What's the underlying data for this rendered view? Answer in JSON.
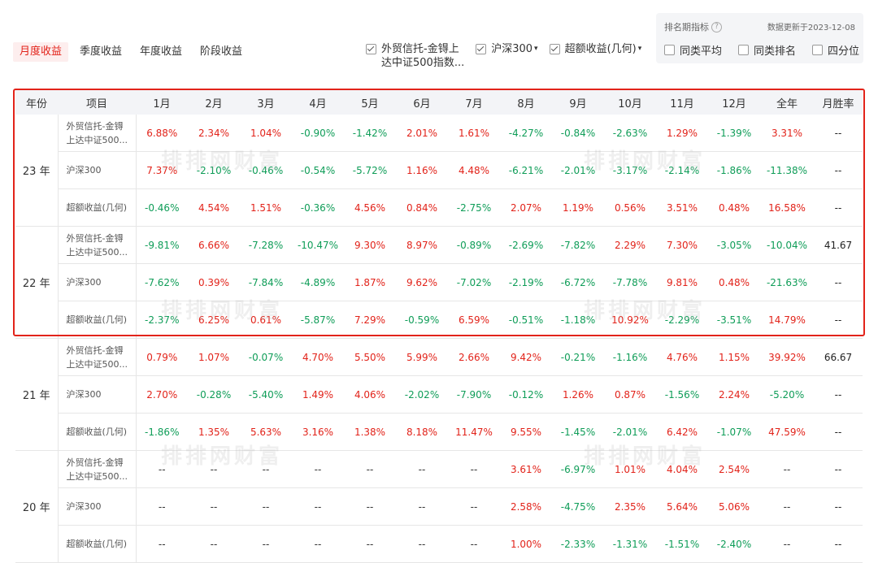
{
  "tabs": [
    "月度收益",
    "季度收益",
    "年度收益",
    "阶段收益"
  ],
  "series_options": [
    {
      "label_line1": "外贸信托-金锝上",
      "label_line2": "达中证500指数...",
      "checked": true,
      "caret": ""
    },
    {
      "label_line1": "沪深300",
      "label_line2": "",
      "checked": true,
      "caret": "▾"
    },
    {
      "label_line1": "超额收益(几何)",
      "label_line2": "",
      "checked": true,
      "caret": "▾"
    }
  ],
  "rank_panel": {
    "title": "排名期指标",
    "help_icon": "?",
    "update_text": "数据更新于2023-12-08",
    "options": [
      "同类平均",
      "同类排名",
      "四分位"
    ]
  },
  "watermark": "排排网财富",
  "table": {
    "headers": [
      "年份",
      "项目",
      "1月",
      "2月",
      "3月",
      "4月",
      "5月",
      "6月",
      "7月",
      "8月",
      "9月",
      "10月",
      "11月",
      "12月",
      "全年",
      "月胜率"
    ],
    "groups": [
      {
        "year": "23 年",
        "rows": [
          {
            "item": "外贸信托-金锝上达中证500...",
            "item_l1": "外贸信托-金锝",
            "item_l2": "上达中证500...",
            "values": [
              "6.88%",
              "2.34%",
              "1.04%",
              "-0.90%",
              "-1.42%",
              "2.01%",
              "1.61%",
              "-4.27%",
              "-0.84%",
              "-2.63%",
              "1.29%",
              "-1.39%",
              "3.31%"
            ],
            "win": "--"
          },
          {
            "item": "沪深300",
            "item_l1": "沪深300",
            "item_l2": "",
            "values": [
              "7.37%",
              "-2.10%",
              "-0.46%",
              "-0.54%",
              "-5.72%",
              "1.16%",
              "4.48%",
              "-6.21%",
              "-2.01%",
              "-3.17%",
              "-2.14%",
              "-1.86%",
              "-11.38%"
            ],
            "win": "--"
          },
          {
            "item": "超额收益(几何)",
            "item_l1": "超额收益(几何)",
            "item_l2": "",
            "values": [
              "-0.46%",
              "4.54%",
              "1.51%",
              "-0.36%",
              "4.56%",
              "0.84%",
              "-2.75%",
              "2.07%",
              "1.19%",
              "0.56%",
              "3.51%",
              "0.48%",
              "16.58%"
            ],
            "win": "--"
          }
        ]
      },
      {
        "year": "22 年",
        "rows": [
          {
            "item": "外贸信托-金锝上达中证500...",
            "item_l1": "外贸信托-金锝",
            "item_l2": "上达中证500...",
            "values": [
              "-9.81%",
              "6.66%",
              "-7.28%",
              "-10.47%",
              "9.30%",
              "8.97%",
              "-0.89%",
              "-2.69%",
              "-7.82%",
              "2.29%",
              "7.30%",
              "-3.05%",
              "-10.04%"
            ],
            "win": "41.67"
          },
          {
            "item": "沪深300",
            "item_l1": "沪深300",
            "item_l2": "",
            "values": [
              "-7.62%",
              "0.39%",
              "-7.84%",
              "-4.89%",
              "1.87%",
              "9.62%",
              "-7.02%",
              "-2.19%",
              "-6.72%",
              "-7.78%",
              "9.81%",
              "0.48%",
              "-21.63%"
            ],
            "win": "--"
          },
          {
            "item": "超额收益(几何)",
            "item_l1": "超额收益(几何)",
            "item_l2": "",
            "values": [
              "-2.37%",
              "6.25%",
              "0.61%",
              "-5.87%",
              "7.29%",
              "-0.59%",
              "6.59%",
              "-0.51%",
              "-1.18%",
              "10.92%",
              "-2.29%",
              "-3.51%",
              "14.79%"
            ],
            "win": "--"
          }
        ]
      },
      {
        "year": "21 年",
        "rows": [
          {
            "item": "外贸信托-金锝上达中证500...",
            "item_l1": "外贸信托-金锝",
            "item_l2": "上达中证500...",
            "values": [
              "0.79%",
              "1.07%",
              "-0.07%",
              "4.70%",
              "5.50%",
              "5.99%",
              "2.66%",
              "9.42%",
              "-0.21%",
              "-1.16%",
              "4.76%",
              "1.15%",
              "39.92%"
            ],
            "win": "66.67"
          },
          {
            "item": "沪深300",
            "item_l1": "沪深300",
            "item_l2": "",
            "values": [
              "2.70%",
              "-0.28%",
              "-5.40%",
              "1.49%",
              "4.06%",
              "-2.02%",
              "-7.90%",
              "-0.12%",
              "1.26%",
              "0.87%",
              "-1.56%",
              "2.24%",
              "-5.20%"
            ],
            "win": "--"
          },
          {
            "item": "超额收益(几何)",
            "item_l1": "超额收益(几何)",
            "item_l2": "",
            "values": [
              "-1.86%",
              "1.35%",
              "5.63%",
              "3.16%",
              "1.38%",
              "8.18%",
              "11.47%",
              "9.55%",
              "-1.45%",
              "-2.01%",
              "6.42%",
              "-1.07%",
              "47.59%"
            ],
            "win": "--"
          }
        ]
      },
      {
        "year": "20 年",
        "rows": [
          {
            "item": "外贸信托-金锝上达中证500...",
            "item_l1": "外贸信托-金锝",
            "item_l2": "上达中证500...",
            "values": [
              "--",
              "--",
              "--",
              "--",
              "--",
              "--",
              "--",
              "3.61%",
              "-6.97%",
              "1.01%",
              "4.04%",
              "2.54%",
              "--"
            ],
            "win": "--"
          },
          {
            "item": "沪深300",
            "item_l1": "沪深300",
            "item_l2": "",
            "values": [
              "--",
              "--",
              "--",
              "--",
              "--",
              "--",
              "--",
              "2.58%",
              "-4.75%",
              "2.35%",
              "5.64%",
              "5.06%",
              "--"
            ],
            "win": "--"
          },
          {
            "item": "超额收益(几何)",
            "item_l1": "超额收益(几何)",
            "item_l2": "",
            "values": [
              "--",
              "--",
              "--",
              "--",
              "--",
              "--",
              "--",
              "1.00%",
              "-2.33%",
              "-1.31%",
              "-1.51%",
              "-2.40%",
              "--"
            ],
            "win": "--"
          }
        ]
      }
    ]
  },
  "colors": {
    "positive": "#e2231a",
    "negative": "#0f9d58",
    "accent": "#e2231a"
  }
}
